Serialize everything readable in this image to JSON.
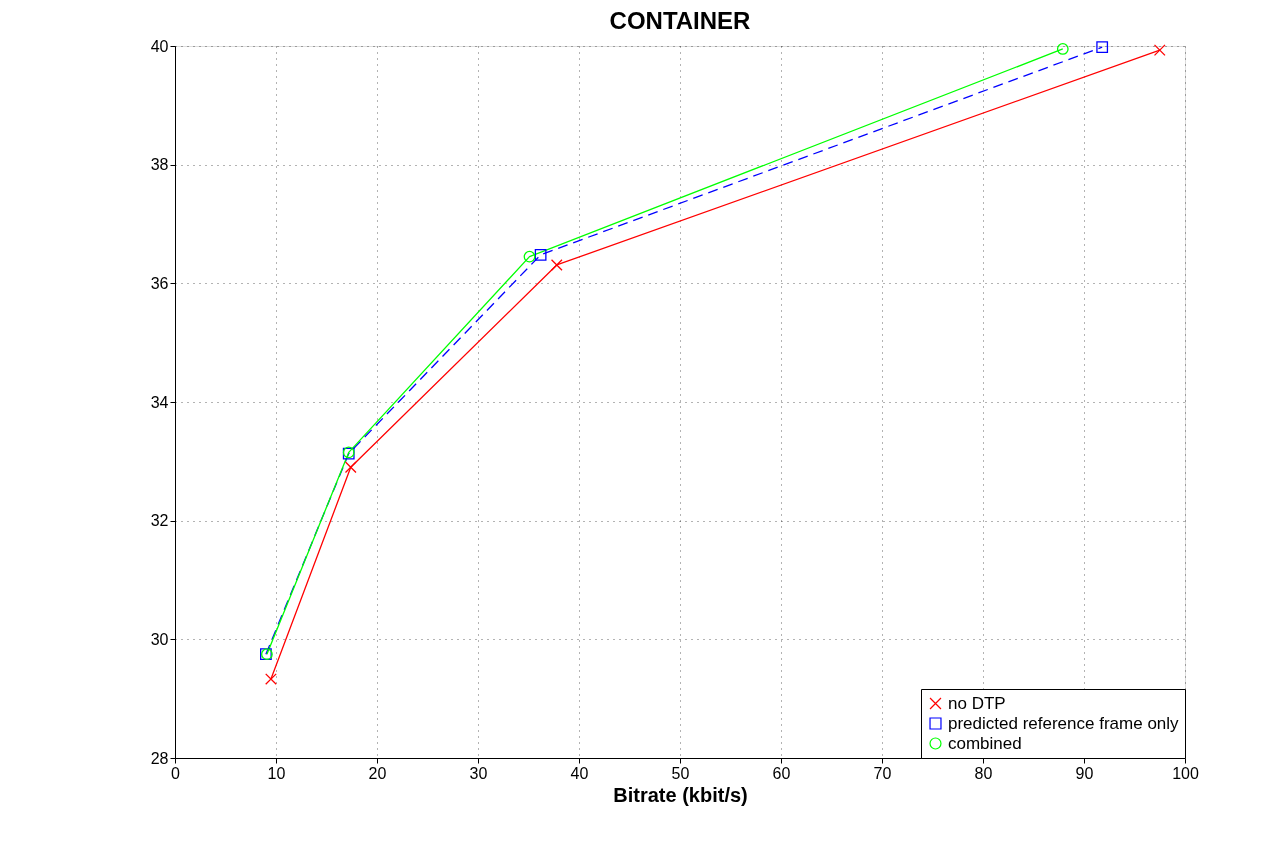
{
  "chart_data": {
    "type": "line",
    "title": "CONTAINER",
    "xlabel": "Bitrate (kbit/s)",
    "xlim": [
      0,
      100
    ],
    "xticks": [
      0,
      10,
      20,
      30,
      40,
      50,
      60,
      70,
      80,
      90,
      100
    ],
    "ylim": [
      28,
      40
    ],
    "yticks": [
      28,
      30,
      32,
      34,
      36,
      38,
      40
    ],
    "grid": true,
    "legend": "bottom right",
    "series": [
      {
        "name": "no DTP",
        "color": "#ff0000",
        "marker": "cross",
        "line_style": "solid",
        "x": [
          9.5,
          17.4,
          37.8,
          97.5
        ],
        "values": [
          29.33,
          32.9,
          36.31,
          39.93
        ]
      },
      {
        "name": "predicted reference frame only",
        "color": "#0000ff",
        "marker": "square",
        "line_style": "dashed",
        "x": [
          9.0,
          17.2,
          36.2,
          91.8
        ],
        "values": [
          29.75,
          33.13,
          36.48,
          39.98
        ]
      },
      {
        "name": "combined",
        "color": "#00ff00",
        "marker": "circle",
        "line_style": "solid",
        "x": [
          9.1,
          17.2,
          35.1,
          87.9
        ],
        "values": [
          29.75,
          33.15,
          36.45,
          39.95
        ]
      }
    ]
  }
}
